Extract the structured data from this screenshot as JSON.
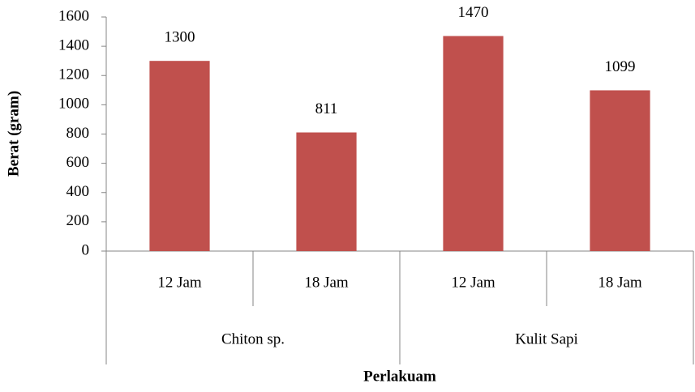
{
  "chart_data": {
    "type": "bar",
    "categories": [
      "12 Jam",
      "18 Jam",
      "12 Jam",
      "18 Jam"
    ],
    "groups": [
      "Chiton sp.",
      "Kulit Sapi"
    ],
    "values": [
      1300,
      811,
      1470,
      1099
    ],
    "color": "#c0504d",
    "xlabel": "Perlakuam",
    "ylabel": "Berat (gram)",
    "ylim": [
      0,
      1600
    ],
    "yticks": [
      0,
      200,
      400,
      600,
      800,
      1000,
      1200,
      1400,
      1600
    ],
    "grid": false
  }
}
